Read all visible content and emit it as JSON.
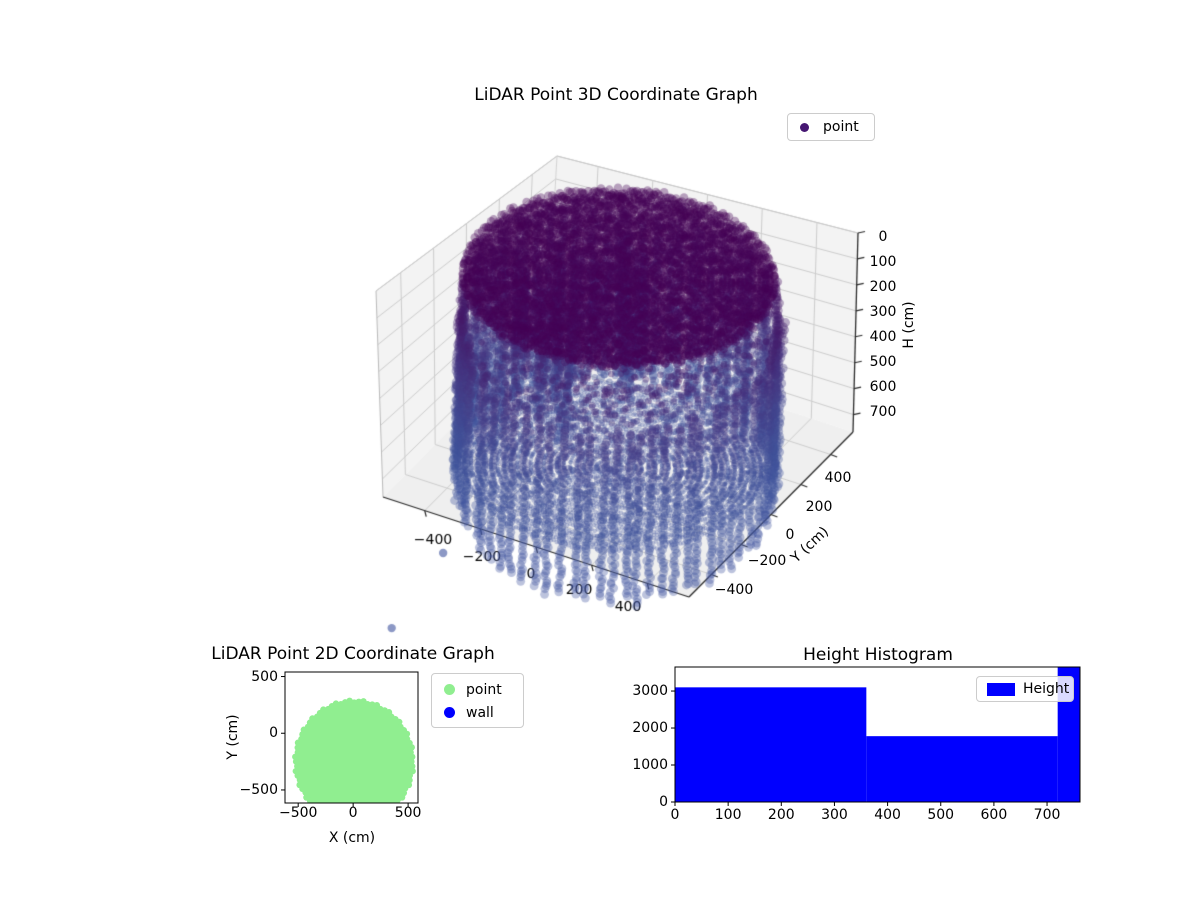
{
  "chart_data": [
    {
      "id": "lidar_3d",
      "type": "scatter",
      "projection": "3d",
      "title": "LiDAR Point 3D Coordinate Graph",
      "ylabel": "Y (cm)",
      "zlabel": "H (cm)",
      "xlim": [
        -550,
        550
      ],
      "ylim": [
        -550,
        550
      ],
      "zlim": [
        0,
        767
      ],
      "z_axis_inverted": true,
      "xticks": [
        -400,
        -200,
        0,
        200,
        400
      ],
      "yticks": [
        -400,
        -200,
        0,
        200,
        400
      ],
      "zticks": [
        0,
        100,
        200,
        300,
        400,
        500,
        600,
        700
      ],
      "legend": [
        {
          "label": "point",
          "color": "#451672"
        }
      ],
      "point_alpha": 0.35,
      "height_colormap": [
        [
          0,
          "#440154"
        ],
        [
          0.35,
          "#46327e"
        ],
        [
          0.7,
          "#414e96"
        ],
        [
          1,
          "#3f549e"
        ]
      ],
      "cloud": {
        "description": "LiDAR scan of a round room: dark ceiling disk near H=0, vertical wall point-columns at radius ~505 cm, concentric floor rings near H=755, cluttered objects on the left interior, sparse washed-out mid-height specks",
        "wall_radius_cm": 505,
        "wall_center_xy": [
          0,
          -35
        ],
        "wall_columns": 76,
        "ceiling_height_range": [
          0,
          35
        ],
        "floor_height_range": [
          750,
          767
        ],
        "wall_top_height_range": [
          60,
          330
        ],
        "wall_bottom_height_range": [
          752,
          950
        ],
        "outlier_points": [
          [
            -257,
            -689,
            800
          ],
          [
            -214,
            -1110,
            830
          ]
        ]
      }
    },
    {
      "id": "lidar_2d",
      "type": "scatter",
      "title": "LiDAR Point 2D Coordinate Graph",
      "xlabel": "X (cm)",
      "ylabel": "Y (cm)",
      "xlim": [
        -620,
        590
      ],
      "ylim": [
        -615,
        540
      ],
      "xticks": [
        -500,
        0,
        500
      ],
      "yticks": [
        -500,
        0,
        500
      ],
      "legend": [
        {
          "label": "point",
          "color": "#90ee90"
        },
        {
          "label": "wall",
          "color": "#0000ff"
        }
      ],
      "blob": {
        "center_xy": [
          10,
          -250
        ],
        "radius_cm": 529,
        "color": "#90ee90"
      }
    },
    {
      "id": "height_hist",
      "type": "histogram",
      "title": "Height Histogram",
      "xlim": [
        0,
        762
      ],
      "ylim": [
        0,
        3650
      ],
      "xticks": [
        0,
        100,
        200,
        300,
        400,
        500,
        600,
        700
      ],
      "yticks": [
        0,
        1000,
        2000,
        3000
      ],
      "legend": [
        {
          "label": "Height",
          "color": "#0000ff"
        }
      ],
      "bar_color": "#0000ff",
      "bars": [
        {
          "x0": 0,
          "x1": 360,
          "value": 3100
        },
        {
          "x0": 360,
          "x1": 720,
          "value": 1780
        },
        {
          "x0": 720,
          "x1": 762,
          "value": 3650
        }
      ]
    }
  ]
}
